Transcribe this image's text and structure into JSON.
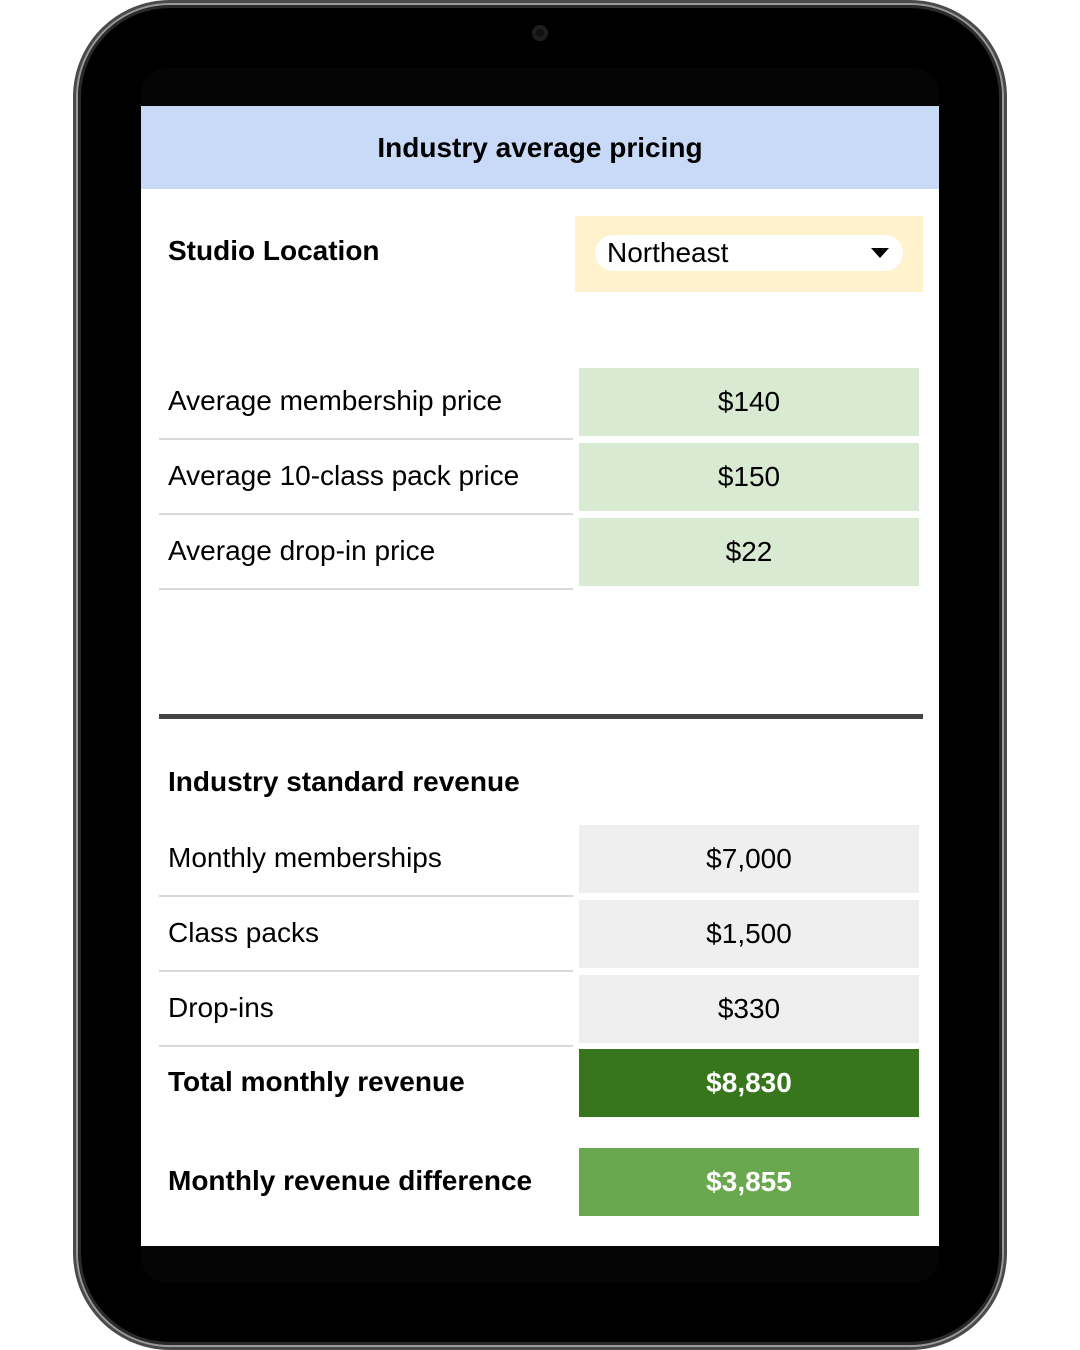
{
  "header": {
    "title": "Industry average pricing"
  },
  "location": {
    "label": "Studio Location",
    "selected": "Northeast"
  },
  "pricing": [
    {
      "label": "Average membership price",
      "value": "$140"
    },
    {
      "label": "Average 10-class pack price",
      "value": "$150"
    },
    {
      "label": "Average drop-in price",
      "value": "$22"
    }
  ],
  "revenue": {
    "title": "Industry standard revenue",
    "rows": [
      {
        "label": "Monthly memberships",
        "value": "$7,000"
      },
      {
        "label": "Class packs",
        "value": "$1,500"
      },
      {
        "label": "Drop-ins",
        "value": "$330"
      }
    ],
    "total": {
      "label": "Total monthly revenue",
      "value": "$8,830"
    },
    "difference": {
      "label": "Monthly revenue difference",
      "value": "$3,855"
    }
  },
  "colors": {
    "header_bg": "#c9daf8",
    "location_bg": "#fff2cc",
    "pricing_bg": "#d9ead3",
    "revenue_bg": "#efefef",
    "total_bg": "#38761d",
    "difference_bg": "#6aa84f"
  }
}
